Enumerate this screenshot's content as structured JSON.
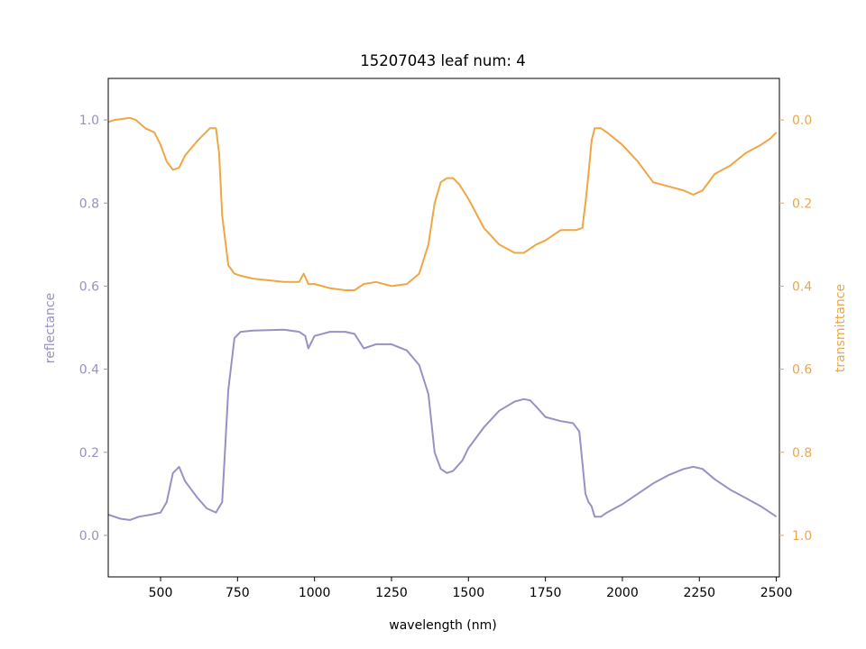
{
  "chart_data": {
    "type": "line",
    "title": "15207043 leaf num: 4",
    "xlabel": "wavelength (nm)",
    "ylabel_left": "reflectance",
    "ylabel_right": "transmittance",
    "xlim": [
      330,
      2510
    ],
    "ylim_left": [
      -0.1,
      1.1
    ],
    "ylim_right": [
      1.1,
      -0.1
    ],
    "x_ticks": [
      500,
      750,
      1000,
      1250,
      1500,
      1750,
      2000,
      2250,
      2500
    ],
    "y_ticks_left": [
      "0.0",
      "0.2",
      "0.4",
      "0.6",
      "0.8",
      "1.0"
    ],
    "y_ticks_right": [
      "0.0",
      "0.2",
      "0.4",
      "0.6",
      "0.8",
      "1.0"
    ],
    "grid": false,
    "legend": "none",
    "series": [
      {
        "axis": "left",
        "color": "#9891c4",
        "x": [
          330,
          350,
          370,
          400,
          430,
          470,
          500,
          520,
          540,
          560,
          580,
          600,
          620,
          650,
          680,
          700,
          720,
          740,
          760,
          800,
          900,
          950,
          970,
          980,
          1000,
          1050,
          1100,
          1130,
          1160,
          1200,
          1250,
          1300,
          1340,
          1370,
          1390,
          1410,
          1430,
          1450,
          1480,
          1500,
          1550,
          1600,
          1650,
          1680,
          1700,
          1720,
          1750,
          1800,
          1840,
          1860,
          1880,
          1890,
          1900,
          1910,
          1930,
          1950,
          2000,
          2050,
          2100,
          2150,
          2200,
          2230,
          2260,
          2300,
          2350,
          2400,
          2450,
          2480,
          2500
        ],
        "y": [
          0.05,
          0.045,
          0.04,
          0.037,
          0.045,
          0.05,
          0.055,
          0.08,
          0.15,
          0.165,
          0.13,
          0.11,
          0.09,
          0.065,
          0.055,
          0.08,
          0.35,
          0.475,
          0.49,
          0.493,
          0.495,
          0.49,
          0.48,
          0.45,
          0.48,
          0.49,
          0.49,
          0.485,
          0.45,
          0.46,
          0.46,
          0.445,
          0.41,
          0.34,
          0.2,
          0.16,
          0.15,
          0.155,
          0.18,
          0.21,
          0.26,
          0.3,
          0.322,
          0.328,
          0.325,
          0.31,
          0.285,
          0.275,
          0.27,
          0.25,
          0.1,
          0.08,
          0.07,
          0.045,
          0.045,
          0.055,
          0.075,
          0.1,
          0.125,
          0.145,
          0.16,
          0.165,
          0.16,
          0.135,
          0.11,
          0.09,
          0.07,
          0.055,
          0.045
        ]
      },
      {
        "axis": "right",
        "color": "#efa644",
        "x": [
          330,
          350,
          400,
          420,
          450,
          480,
          500,
          520,
          540,
          560,
          580,
          620,
          660,
          680,
          690,
          700,
          720,
          740,
          760,
          800,
          900,
          950,
          965,
          980,
          1000,
          1050,
          1100,
          1130,
          1160,
          1200,
          1250,
          1300,
          1340,
          1370,
          1390,
          1410,
          1430,
          1450,
          1470,
          1500,
          1550,
          1600,
          1650,
          1680,
          1700,
          1720,
          1750,
          1800,
          1850,
          1870,
          1880,
          1890,
          1900,
          1910,
          1930,
          1950,
          2000,
          2050,
          2100,
          2150,
          2200,
          2230,
          2260,
          2300,
          2350,
          2400,
          2450,
          2480,
          2500
        ],
        "y": [
          0.005,
          0.0,
          -0.005,
          0.0,
          0.02,
          0.03,
          0.06,
          0.1,
          0.12,
          0.115,
          0.085,
          0.05,
          0.02,
          0.02,
          0.08,
          0.23,
          0.35,
          0.37,
          0.375,
          0.382,
          0.39,
          0.39,
          0.37,
          0.395,
          0.395,
          0.405,
          0.41,
          0.41,
          0.395,
          0.39,
          0.4,
          0.395,
          0.37,
          0.3,
          0.2,
          0.15,
          0.14,
          0.14,
          0.155,
          0.19,
          0.26,
          0.3,
          0.32,
          0.32,
          0.31,
          0.3,
          0.29,
          0.265,
          0.265,
          0.26,
          0.2,
          0.13,
          0.05,
          0.02,
          0.02,
          0.03,
          0.06,
          0.1,
          0.15,
          0.16,
          0.17,
          0.18,
          0.17,
          0.13,
          0.11,
          0.08,
          0.06,
          0.045,
          0.03
        ]
      }
    ]
  }
}
